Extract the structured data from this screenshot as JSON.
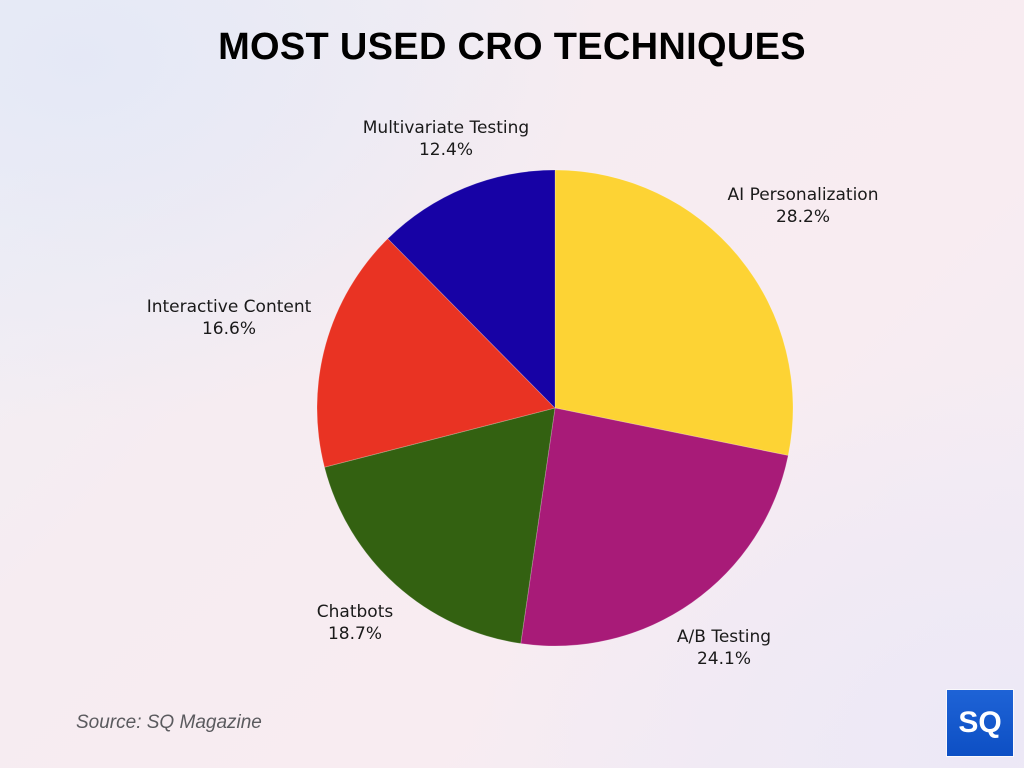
{
  "title": "MOST USED CRO TECHNIQUES",
  "source": "Source: SQ Magazine",
  "logo": {
    "text": "SQ",
    "color": "#1459d0"
  },
  "chart_data": {
    "type": "pie",
    "title": "MOST USED CRO TECHNIQUES",
    "start_angle_deg": 0,
    "direction": "clockwise",
    "legend": "none (direct labels)",
    "categories": [
      "AI Personalization",
      "A/B Testing",
      "Chatbots",
      "Interactive Content",
      "Multivariate Testing"
    ],
    "values": [
      28.2,
      24.1,
      18.7,
      16.6,
      12.4
    ],
    "labels": [
      "28.2%",
      "24.1%",
      "18.7%",
      "16.6%",
      "12.4%"
    ],
    "colors": [
      "#fdd334",
      "#a81b78",
      "#336111",
      "#e93323",
      "#1702a5"
    ],
    "unit": "%"
  },
  "slices": [
    {
      "name": "AI Personalization",
      "pct": "28.2%",
      "color": "#fdd334"
    },
    {
      "name": "A/B Testing",
      "pct": "24.1%",
      "color": "#a81b78"
    },
    {
      "name": "Chatbots",
      "pct": "18.7%",
      "color": "#336111"
    },
    {
      "name": "Interactive Content",
      "pct": "16.6%",
      "color": "#e93323"
    },
    {
      "name": "Multivariate Testing",
      "pct": "12.4%",
      "color": "#1702a5"
    }
  ]
}
